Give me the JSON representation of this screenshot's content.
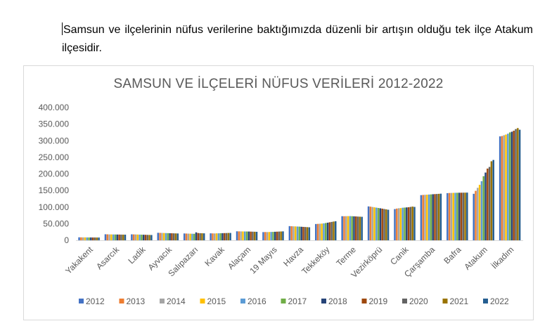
{
  "document": {
    "paragraph": "Samsun ve ilçelerinin nüfus verilerine baktığımızda düzenli bir artışın olduğu tek ilçe Atakum ilçesidir."
  },
  "chart_data": {
    "type": "bar",
    "title": "SAMSUN VE İLÇELERİ NÜFUS VERİLERİ 2012-2022",
    "xlabel": "",
    "ylabel": "",
    "ylim": [
      0,
      400000
    ],
    "yticks": [
      "0",
      "50.000",
      "100.000",
      "150.000",
      "200.000",
      "250.000",
      "300.000",
      "350.000",
      "400.000"
    ],
    "grid": false,
    "legend_position": "bottom",
    "categories": [
      "Yakakent",
      "Asarcık",
      "Ladik",
      "Ayvacık",
      "Salıpazarı",
      "Kavak",
      "Alaçam",
      "19 Mayıs",
      "Havza",
      "Tekkeköy",
      "Terme",
      "Vezirköprü",
      "Canik",
      "Çarşamba",
      "Bafra",
      "Atakum",
      "İlkadım"
    ],
    "series": [
      {
        "name": "2012",
        "color": "#4472c4",
        "values": [
          8900,
          18100,
          17900,
          22500,
          20500,
          20900,
          27000,
          24600,
          42600,
          49000,
          72500,
          102000,
          94000,
          136000,
          142000,
          140000,
          313000
        ]
      },
      {
        "name": "2013",
        "color": "#ed7d31",
        "values": [
          8800,
          17900,
          17700,
          22300,
          20300,
          20700,
          26800,
          24800,
          42300,
          49400,
          72400,
          101300,
          95500,
          136600,
          142400,
          149000,
          314000
        ]
      },
      {
        "name": "2014",
        "color": "#a5a5a5",
        "values": [
          8700,
          17700,
          17500,
          22100,
          20100,
          20600,
          26700,
          24700,
          42000,
          49800,
          72600,
          100300,
          96500,
          137000,
          142600,
          158000,
          316500
        ]
      },
      {
        "name": "2015",
        "color": "#ffc000",
        "values": [
          8700,
          17600,
          17300,
          21900,
          19900,
          20800,
          26600,
          24900,
          41700,
          50200,
          72700,
          99300,
          97000,
          137300,
          142800,
          167000,
          318500
        ]
      },
      {
        "name": "2016",
        "color": "#5b9bd5",
        "values": [
          8600,
          17500,
          17100,
          21700,
          19700,
          21000,
          26500,
          25100,
          41400,
          51000,
          72800,
          98300,
          98000,
          137800,
          143000,
          178000,
          321000
        ]
      },
      {
        "name": "2017",
        "color": "#70ad47",
        "values": [
          8500,
          17400,
          16900,
          21500,
          19500,
          21200,
          26400,
          25300,
          41100,
          52000,
          72500,
          97300,
          98500,
          138200,
          143100,
          193000,
          325000
        ]
      },
      {
        "name": "2018",
        "color": "#264478",
        "values": [
          8500,
          17300,
          16700,
          21300,
          23800,
          21400,
          26300,
          25600,
          40700,
          53000,
          72100,
          96300,
          99000,
          138700,
          143200,
          204000,
          327000
        ]
      },
      {
        "name": "2019",
        "color": "#9e480e",
        "values": [
          8400,
          17200,
          16500,
          21100,
          21800,
          21600,
          26100,
          25900,
          40300,
          54200,
          71800,
          95300,
          99500,
          139100,
          143300,
          216000,
          330000
        ]
      },
      {
        "name": "2020",
        "color": "#636363",
        "values": [
          8400,
          17100,
          16300,
          20900,
          21400,
          21800,
          25900,
          26200,
          39900,
          55300,
          71400,
          94200,
          100500,
          139500,
          143400,
          221000,
          335000
        ]
      },
      {
        "name": "2021",
        "color": "#997300",
        "values": [
          8300,
          17000,
          16100,
          20700,
          21100,
          22000,
          25700,
          26500,
          39500,
          56400,
          71100,
          93100,
          101500,
          139900,
          143500,
          238000,
          338000
        ]
      },
      {
        "name": "2022",
        "color": "#255e91",
        "values": [
          8300,
          16900,
          15900,
          20500,
          20900,
          22100,
          25500,
          26800,
          39100,
          57400,
          70700,
          92000,
          100500,
          140400,
          143600,
          242000,
          333000
        ]
      }
    ]
  }
}
